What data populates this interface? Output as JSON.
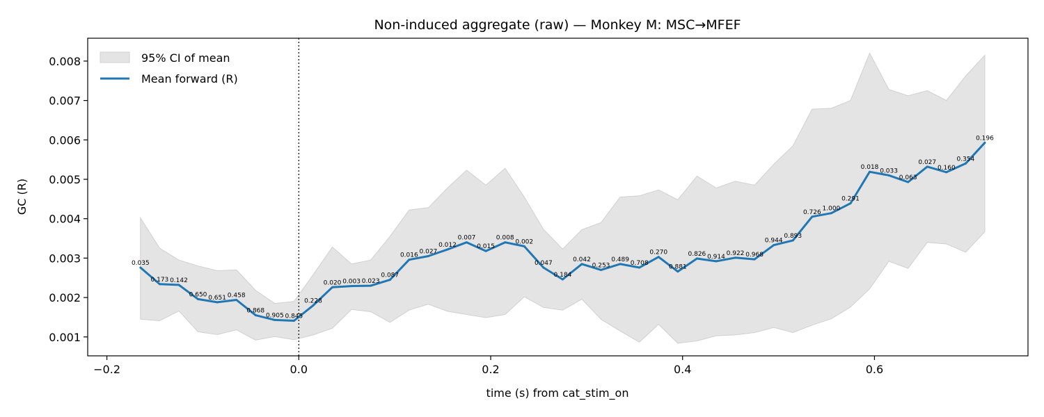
{
  "chart_data": {
    "type": "line",
    "title": "Non-induced aggregate (raw) — Monkey M: MSC→MFEF",
    "xlabel": "time (s) from cat_stim_on",
    "ylabel": "GC (R)",
    "xlim": [
      -0.22,
      0.76
    ],
    "ylim": [
      0.00052,
      0.00858
    ],
    "xticks": [
      -0.2,
      0.0,
      0.2,
      0.4,
      0.6
    ],
    "xtick_labels": [
      "−0.2",
      "0.0",
      "0.2",
      "0.4",
      "0.6"
    ],
    "yticks": [
      0.001,
      0.002,
      0.003,
      0.004,
      0.005,
      0.006,
      0.007,
      0.008
    ],
    "ytick_labels": [
      "0.001",
      "0.002",
      "0.003",
      "0.004",
      "0.005",
      "0.006",
      "0.007",
      "0.008"
    ],
    "grid": false,
    "legend_position": "top-left",
    "vline_x": 0.0,
    "x": [
      -0.165,
      -0.145,
      -0.125,
      -0.105,
      -0.085,
      -0.065,
      -0.045,
      -0.025,
      -0.005,
      0.015,
      0.035,
      0.055,
      0.075,
      0.095,
      0.115,
      0.135,
      0.155,
      0.175,
      0.195,
      0.215,
      0.235,
      0.255,
      0.275,
      0.295,
      0.315,
      0.335,
      0.355,
      0.375,
      0.395,
      0.415,
      0.435,
      0.455,
      0.475,
      0.495,
      0.515,
      0.535,
      0.555,
      0.575,
      0.595,
      0.615,
      0.635,
      0.655,
      0.675,
      0.695,
      0.715
    ],
    "series": [
      {
        "name": "Mean forward (R)",
        "color": "#1f77b4",
        "values": [
          0.00276,
          0.00234,
          0.00232,
          0.00196,
          0.00188,
          0.00194,
          0.00155,
          0.00143,
          0.00141,
          0.0018,
          0.00226,
          0.00229,
          0.0023,
          0.00245,
          0.00296,
          0.00305,
          0.00322,
          0.0034,
          0.00318,
          0.0034,
          0.0033,
          0.00276,
          0.00246,
          0.00285,
          0.0027,
          0.00285,
          0.00276,
          0.00303,
          0.00266,
          0.00299,
          0.00292,
          0.00301,
          0.00297,
          0.00333,
          0.00345,
          0.00405,
          0.00414,
          0.00439,
          0.00519,
          0.0051,
          0.00493,
          0.00532,
          0.00518,
          0.0054,
          0.00593
        ],
        "annotations": [
          "0.035",
          "0.173",
          "0.142",
          "0.650",
          "0.651",
          "0.458",
          "0.868",
          "0.905",
          "0.845",
          "0.228",
          "0.020",
          "0.003",
          "0.023",
          "0.087",
          "0.016",
          "0.027",
          "0.012",
          "0.007",
          "0.015",
          "0.008",
          "0.002",
          "0.047",
          "0.184",
          "0.042",
          "0.253",
          "0.489",
          "0.708",
          "0.270",
          "0.881",
          "0.826",
          "0.914",
          "0.922",
          "0.968",
          "0.944",
          "0.893",
          "0.726",
          "1.000",
          "0.291",
          "0.018",
          "0.033",
          "0.063",
          "0.027",
          "0.160",
          "0.354",
          "0.196"
        ]
      },
      {
        "name": "95% CI of mean",
        "color": "#e4e4e4",
        "upper": [
          0.00402,
          0.00325,
          0.00295,
          0.0028,
          0.00268,
          0.0027,
          0.00218,
          0.00185,
          0.0019,
          0.00258,
          0.00328,
          0.00285,
          0.00295,
          0.00355,
          0.00422,
          0.00428,
          0.00478,
          0.00523,
          0.00485,
          0.00528,
          0.00455,
          0.00373,
          0.00323,
          0.00372,
          0.0039,
          0.00455,
          0.00458,
          0.00473,
          0.00448,
          0.00508,
          0.00478,
          0.00495,
          0.00485,
          0.00538,
          0.00585,
          0.00678,
          0.0068,
          0.007,
          0.0082,
          0.00728,
          0.00712,
          0.00725,
          0.007,
          0.00762,
          0.00815
        ],
        "lower": [
          0.00145,
          0.00141,
          0.00166,
          0.00113,
          0.00106,
          0.00118,
          0.00092,
          0.00101,
          0.00093,
          0.00105,
          0.00122,
          0.0017,
          0.00164,
          0.00137,
          0.00168,
          0.00183,
          0.00165,
          0.00157,
          0.00149,
          0.00157,
          0.00202,
          0.00175,
          0.00168,
          0.00196,
          0.00145,
          0.00115,
          0.00087,
          0.00132,
          0.00084,
          0.0009,
          0.00103,
          0.00105,
          0.00111,
          0.00124,
          0.00111,
          0.0013,
          0.00146,
          0.00176,
          0.00222,
          0.00292,
          0.00274,
          0.0034,
          0.00336,
          0.00315,
          0.00367
        ]
      }
    ]
  }
}
